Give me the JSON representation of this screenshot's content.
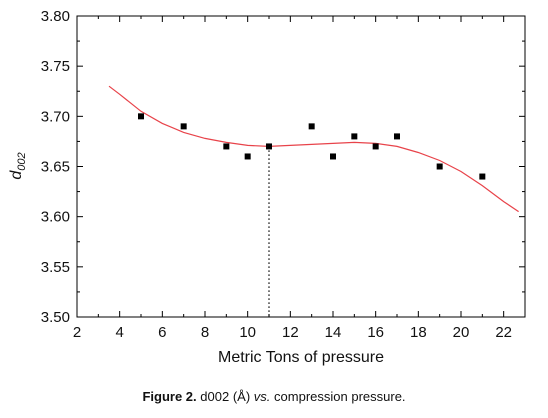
{
  "caption": {
    "label": "Figure 2.",
    "quantity": "d002",
    "unit": "(Å)",
    "vs": "vs.",
    "rest": "compression pressure."
  },
  "chart_data": {
    "type": "scatter",
    "xlabel": "Metric Tons of pressure",
    "ylabel_main": "d",
    "ylabel_sub": "002",
    "xlim": [
      2,
      23
    ],
    "ylim": [
      3.5,
      3.8
    ],
    "x_ticks": [
      "2",
      "4",
      "6",
      "8",
      "10",
      "12",
      "14",
      "16",
      "18",
      "20",
      "22"
    ],
    "y_ticks": [
      "3.50",
      "3.55",
      "3.60",
      "3.65",
      "3.70",
      "3.75",
      "3.80"
    ],
    "points": {
      "x": [
        5,
        7,
        9,
        10,
        11,
        13,
        14,
        15,
        16,
        17,
        19,
        21
      ],
      "y": [
        3.7,
        3.69,
        3.67,
        3.66,
        3.67,
        3.69,
        3.66,
        3.68,
        3.67,
        3.68,
        3.65,
        3.64
      ]
    },
    "fit_curve": {
      "color": "#e8434a",
      "x": [
        3.5,
        4,
        5,
        6,
        7,
        8,
        9,
        10,
        11,
        12,
        13,
        14,
        15,
        16,
        17,
        18,
        19,
        20,
        21,
        22,
        22.7
      ],
      "y": [
        3.73,
        3.722,
        3.705,
        3.693,
        3.684,
        3.678,
        3.674,
        3.671,
        3.67,
        3.671,
        3.672,
        3.673,
        3.674,
        3.673,
        3.67,
        3.664,
        3.656,
        3.645,
        3.631,
        3.615,
        3.605
      ]
    },
    "reference_line": {
      "x": 11,
      "y": 3.67
    },
    "marker_color": "#000000",
    "grid": false
  }
}
